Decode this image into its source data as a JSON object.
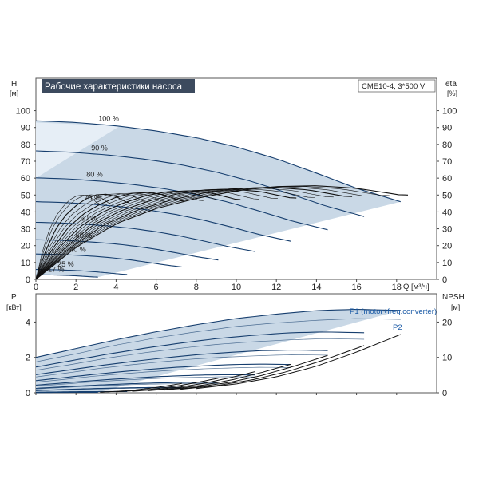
{
  "title": "Рабочие характеристики насоса",
  "model": "CME10-4, 3*500 V",
  "colors": {
    "area": "#c9d8e6",
    "area_light": "#e6eef6",
    "curve": "#163e6e",
    "title_bg": "#3c4a5e",
    "black": "#111111",
    "grid": "#dcdcdc",
    "label_blue": "#1a5aa6"
  },
  "chart_data": [
    {
      "id": "head",
      "type": "line",
      "ylabel_left": "H",
      "yunit_left": "[м]",
      "ylabel_right": "eta",
      "yunit_right": "[%]",
      "xlabel": "Q [м³/ч]",
      "xlim": [
        0,
        20
      ],
      "ylim": [
        0,
        105
      ],
      "xticks": [
        0,
        2,
        4,
        6,
        8,
        10,
        12,
        14,
        16,
        18
      ],
      "yticks": [
        0,
        10,
        20,
        30,
        40,
        50,
        60,
        70,
        80,
        90,
        100
      ],
      "grid": false,
      "speed_labels": [
        "100 %",
        "90 %",
        "80 %",
        "70 %",
        "60 %",
        "50 %",
        "40 %",
        "25 %",
        "17 %"
      ],
      "speed_fractions": [
        1.0,
        0.9,
        0.8,
        0.7,
        0.6,
        0.5,
        0.4,
        0.25,
        0.17
      ],
      "head_curve_100": {
        "q": [
          0,
          2,
          4,
          6,
          8,
          10,
          12,
          14,
          16,
          18.2
        ],
        "h": [
          94,
          93,
          91,
          88,
          84,
          78.5,
          71.5,
          63,
          54,
          46
        ]
      },
      "efficiency_curve_100": {
        "q": [
          0,
          2,
          4,
          6,
          8,
          10,
          12,
          14,
          16,
          18.2
        ],
        "eta": [
          0,
          19,
          33,
          42,
          48,
          52.5,
          55,
          55.5,
          54,
          50
        ]
      }
    },
    {
      "id": "power_npsh",
      "type": "line",
      "ylabel_left": "P",
      "yunit_left": "[кВт]",
      "ylabel_right": "NPSH",
      "yunit_right": "[м]",
      "xlim": [
        0,
        20
      ],
      "ylim": [
        0,
        5.6
      ],
      "yticks": [
        0,
        2,
        4
      ],
      "yticks_right": [
        0,
        10,
        20
      ],
      "npsh_max": 28,
      "series_labels": [
        "P1 (motor+freq.converter)",
        "P2"
      ],
      "p1_curve_100": {
        "q": [
          0,
          2,
          4,
          6,
          8,
          10,
          12,
          14,
          16,
          18.2
        ],
        "p": [
          2.0,
          2.5,
          3.0,
          3.45,
          3.85,
          4.2,
          4.45,
          4.65,
          4.72,
          4.66
        ]
      },
      "p2_curve_100": {
        "q": [
          0,
          2,
          4,
          6,
          8,
          10,
          12,
          14,
          16,
          18.2
        ],
        "p": [
          1.75,
          2.2,
          2.7,
          3.1,
          3.45,
          3.75,
          3.95,
          4.1,
          4.2,
          4.15
        ]
      },
      "npsh_curve": {
        "q": [
          8,
          10,
          12,
          14,
          16,
          18.2
        ],
        "npsh": [
          1.2,
          2.5,
          4.5,
          7.5,
          11.5,
          16.5
        ]
      }
    }
  ]
}
